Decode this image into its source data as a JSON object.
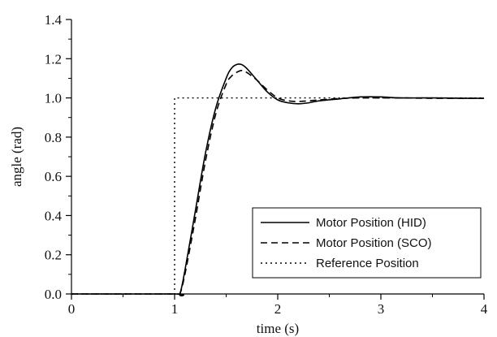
{
  "chart_data": {
    "type": "line",
    "xlabel": "time (s)",
    "ylabel": "angle (rad)",
    "xlim": [
      0,
      4
    ],
    "ylim": [
      0,
      1.4
    ],
    "x_ticks": [
      "0",
      "1",
      "2",
      "3",
      "4"
    ],
    "y_ticks": [
      "0.0",
      "0.2",
      "0.4",
      "0.6",
      "0.8",
      "1.0",
      "1.2",
      "1.4"
    ],
    "grid": false,
    "legend_position": "bottom-right",
    "series": [
      {
        "name": "Motor Position (HID)",
        "style": "solid",
        "color": "#000000",
        "x": [
          0,
          1.0,
          1.05,
          1.1,
          1.2,
          1.3,
          1.4,
          1.5,
          1.55,
          1.6,
          1.65,
          1.7,
          1.8,
          1.9,
          2.0,
          2.1,
          2.2,
          2.3,
          2.4,
          2.6,
          2.8,
          3.0,
          3.2,
          3.5,
          3.8,
          4.0
        ],
        "y": [
          0,
          0,
          0.0,
          0.12,
          0.42,
          0.72,
          0.95,
          1.1,
          1.15,
          1.17,
          1.17,
          1.15,
          1.09,
          1.03,
          0.99,
          0.975,
          0.97,
          0.975,
          0.985,
          0.995,
          1.005,
          1.005,
          1.0,
          1.0,
          0.998,
          0.998
        ]
      },
      {
        "name": "Motor Position (SCO)",
        "style": "dashed",
        "color": "#000000",
        "x": [
          0,
          1.0,
          1.05,
          1.1,
          1.2,
          1.3,
          1.4,
          1.5,
          1.55,
          1.6,
          1.65,
          1.7,
          1.8,
          1.9,
          2.0,
          2.1,
          2.2,
          2.3,
          2.4,
          2.6,
          2.8,
          3.0,
          3.2,
          3.5,
          3.8,
          4.0
        ],
        "y": [
          0,
          0,
          0.0,
          0.1,
          0.38,
          0.68,
          0.92,
          1.07,
          1.11,
          1.13,
          1.14,
          1.13,
          1.09,
          1.04,
          1.0,
          0.985,
          0.982,
          0.985,
          0.99,
          0.997,
          1.0,
          1.0,
          1.0,
          0.998,
          0.998,
          0.998
        ]
      },
      {
        "name": "Reference Position",
        "style": "dotted",
        "color": "#000000",
        "x": [
          0,
          1.0,
          1.0,
          4.0
        ],
        "y": [
          0,
          0,
          1.0,
          1.0
        ]
      }
    ]
  }
}
